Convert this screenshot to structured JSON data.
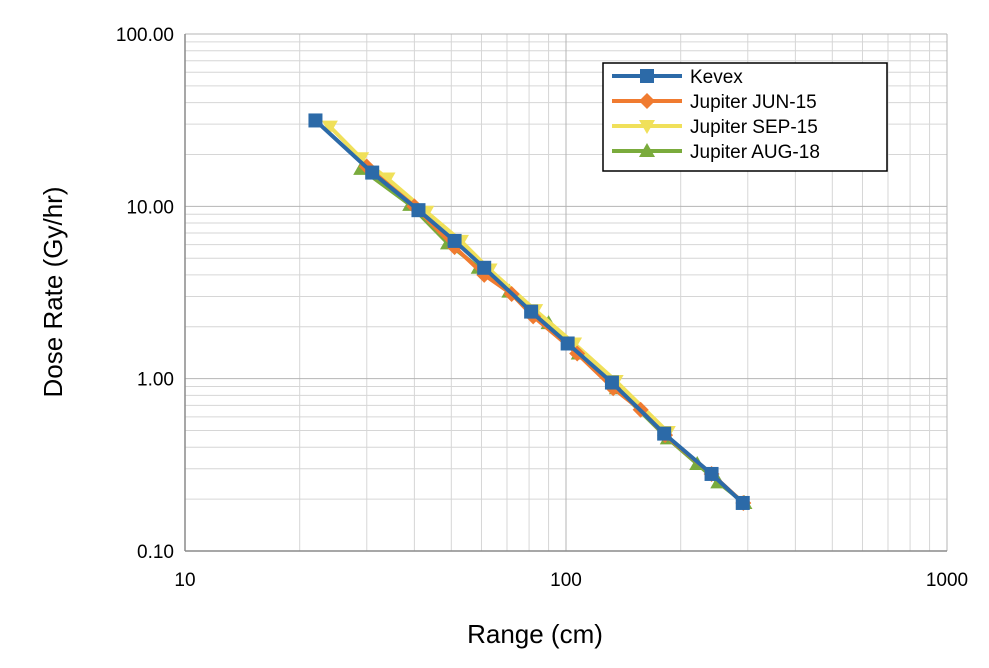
{
  "chart_data": {
    "type": "line",
    "xlabel": "Range (cm)",
    "ylabel": "Dose Rate (Gy/hr)",
    "x_scale": "log",
    "y_scale": "log",
    "xlim": [
      10,
      1000
    ],
    "ylim": [
      0.1,
      100
    ],
    "xticks": [
      "10",
      "100",
      "1000"
    ],
    "yticks": [
      "100.00",
      "10.00",
      "1.00",
      "0.10"
    ],
    "grid": true,
    "legend_position": "top-right",
    "series": [
      {
        "name": "Kevex",
        "color": "#2c6aa8",
        "marker": "square",
        "x": [
          22,
          31,
          41,
          51,
          61,
          81,
          101,
          132,
          181,
          241,
          291
        ],
        "y": [
          31.5,
          15.7,
          9.5,
          6.3,
          4.4,
          2.45,
          1.6,
          0.95,
          0.48,
          0.28,
          0.19
        ]
      },
      {
        "name": "Jupiter JUN-15",
        "color": "#f07b30",
        "marker": "diamond",
        "x": [
          30,
          40,
          51,
          61,
          72,
          82,
          107,
          133,
          157,
          182,
          241,
          292
        ],
        "y": [
          17,
          10,
          5.8,
          4.0,
          3.1,
          2.3,
          1.4,
          0.88,
          0.66,
          0.47,
          0.28,
          0.19
        ]
      },
      {
        "name": "Jupiter SEP-15",
        "color": "#f0e05a",
        "marker": "triangle-down",
        "x": [
          24,
          29,
          34,
          43,
          53,
          63,
          83,
          105,
          135,
          185
        ],
        "y": [
          29,
          19,
          14.5,
          9.3,
          6.3,
          4.3,
          2.5,
          1.6,
          0.97,
          0.49
        ]
      },
      {
        "name": "Jupiter AUG-18",
        "color": "#7aab3c",
        "marker": "triangle-up",
        "x": [
          29,
          39,
          49,
          59,
          71,
          90,
          108,
          136,
          185,
          221,
          251,
          294
        ],
        "y": [
          16.5,
          10.2,
          6.1,
          4.4,
          3.2,
          2.1,
          1.4,
          0.88,
          0.45,
          0.32,
          0.25,
          0.19
        ]
      }
    ]
  }
}
